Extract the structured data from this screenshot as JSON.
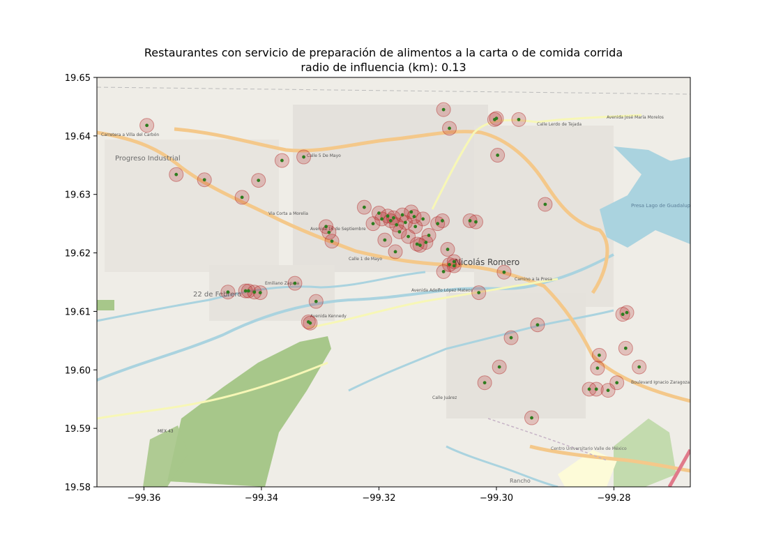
{
  "chart_data": {
    "type": "scatter",
    "title": "Restaurantes con servicio de preparación de alimentos a la carta o de comida corrida",
    "subtitle": "radio de influencia (km): 0.13",
    "xlabel": "",
    "ylabel": "",
    "xlim": [
      -99.368,
      -99.267
    ],
    "ylim": [
      19.58,
      19.65
    ],
    "xticks": [
      -99.36,
      -99.34,
      -99.32,
      -99.3,
      -99.28
    ],
    "xtick_labels": [
      "−99.36",
      "−99.34",
      "−99.32",
      "−99.30",
      "−99.28"
    ],
    "yticks": [
      19.58,
      19.59,
      19.6,
      19.61,
      19.62,
      19.63,
      19.64,
      19.65
    ],
    "ytick_labels": [
      "19.58",
      "19.59",
      "19.60",
      "19.61",
      "19.62",
      "19.63",
      "19.64",
      "19.65"
    ],
    "grid": false,
    "basemap_labels": [
      "Progreso Industrial",
      "Nicolás Romero",
      "22 de Febrero",
      "Presa Lago de Guadalupe",
      "Centro Universitario Valle de México",
      "Rancho",
      "MEX 43",
      "Avenida Kennedy",
      "Calle 1 de Mayo",
      "Avenida Adolfo López Mateos",
      "Camino a la Presa",
      "Boulevard Ignacio Zaragoza",
      "Avenida José María Morelos",
      "Calle Lerdo de Tejada",
      "Via Corta a Morelia",
      "Calle 5 De Mayo",
      "Carretera a Villa del Carbón",
      "Emiliano Zapata",
      "Avenida 16 de Septiembre",
      "Calle Juárez"
    ],
    "series": [
      {
        "marker_color": "#2e7d1f",
        "circle_color": "#b22222",
        "points": [
          [
            -99.3595,
            19.6418
          ],
          [
            -99.3545,
            19.6334
          ],
          [
            -99.3497,
            19.6325
          ],
          [
            -99.3433,
            19.6295
          ],
          [
            -99.3405,
            19.6324
          ],
          [
            -99.3365,
            19.6358
          ],
          [
            -99.3328,
            19.6364
          ],
          [
            -99.329,
            19.6245
          ],
          [
            -99.3285,
            19.6235
          ],
          [
            -99.328,
            19.622
          ],
          [
            -99.3225,
            19.6278
          ],
          [
            -99.321,
            19.625
          ],
          [
            -99.32,
            19.6268
          ],
          [
            -99.3195,
            19.6258
          ],
          [
            -99.319,
            19.6222
          ],
          [
            -99.3185,
            19.6263
          ],
          [
            -99.318,
            19.6255
          ],
          [
            -99.3175,
            19.626
          ],
          [
            -99.3172,
            19.6202
          ],
          [
            -99.317,
            19.6248
          ],
          [
            -99.3165,
            19.6236
          ],
          [
            -99.316,
            19.6265
          ],
          [
            -99.3155,
            19.6252
          ],
          [
            -99.315,
            19.6228
          ],
          [
            -99.3145,
            19.627
          ],
          [
            -99.314,
            19.6262
          ],
          [
            -99.3138,
            19.6245
          ],
          [
            -99.3135,
            19.6215
          ],
          [
            -99.313,
            19.6213
          ],
          [
            -99.3125,
            19.6258
          ],
          [
            -99.312,
            19.6218
          ],
          [
            -99.3115,
            19.623
          ],
          [
            -99.31,
            19.625
          ],
          [
            -99.3092,
            19.6255
          ],
          [
            -99.3083,
            19.6206
          ],
          [
            -99.309,
            19.6168
          ],
          [
            -99.308,
            19.618
          ],
          [
            -99.3072,
            19.6185
          ],
          [
            -99.3072,
            19.6178
          ],
          [
            -99.3045,
            19.6255
          ],
          [
            -99.3035,
            19.6253
          ],
          [
            -99.303,
            19.6132
          ],
          [
            -99.309,
            19.6445
          ],
          [
            -99.308,
            19.6413
          ],
          [
            -99.3003,
            19.6428
          ],
          [
            -99.3,
            19.643
          ],
          [
            -99.2998,
            19.6367
          ],
          [
            -99.2987,
            19.6167
          ],
          [
            -99.2962,
            19.6428
          ],
          [
            -99.2917,
            19.6283
          ],
          [
            -99.2975,
            19.6055
          ],
          [
            -99.2995,
            19.6005
          ],
          [
            -99.302,
            19.5978
          ],
          [
            -99.294,
            19.5918
          ],
          [
            -99.293,
            19.6077
          ],
          [
            -99.2825,
            19.6025
          ],
          [
            -99.2828,
            19.6003
          ],
          [
            -99.2842,
            19.5967
          ],
          [
            -99.283,
            19.5967
          ],
          [
            -99.281,
            19.5965
          ],
          [
            -99.2795,
            19.5978
          ],
          [
            -99.2785,
            19.6095
          ],
          [
            -99.2778,
            19.6098
          ],
          [
            -99.278,
            19.6037
          ],
          [
            -99.2757,
            19.6005
          ],
          [
            -99.3457,
            19.6133
          ],
          [
            -99.3427,
            19.6135
          ],
          [
            -99.3422,
            19.6135
          ],
          [
            -99.3412,
            19.6133
          ],
          [
            -99.3402,
            19.6132
          ],
          [
            -99.3343,
            19.6148
          ],
          [
            -99.3307,
            19.6117
          ],
          [
            -99.3317,
            19.608
          ],
          [
            -99.332,
            19.6082
          ]
        ]
      }
    ]
  }
}
